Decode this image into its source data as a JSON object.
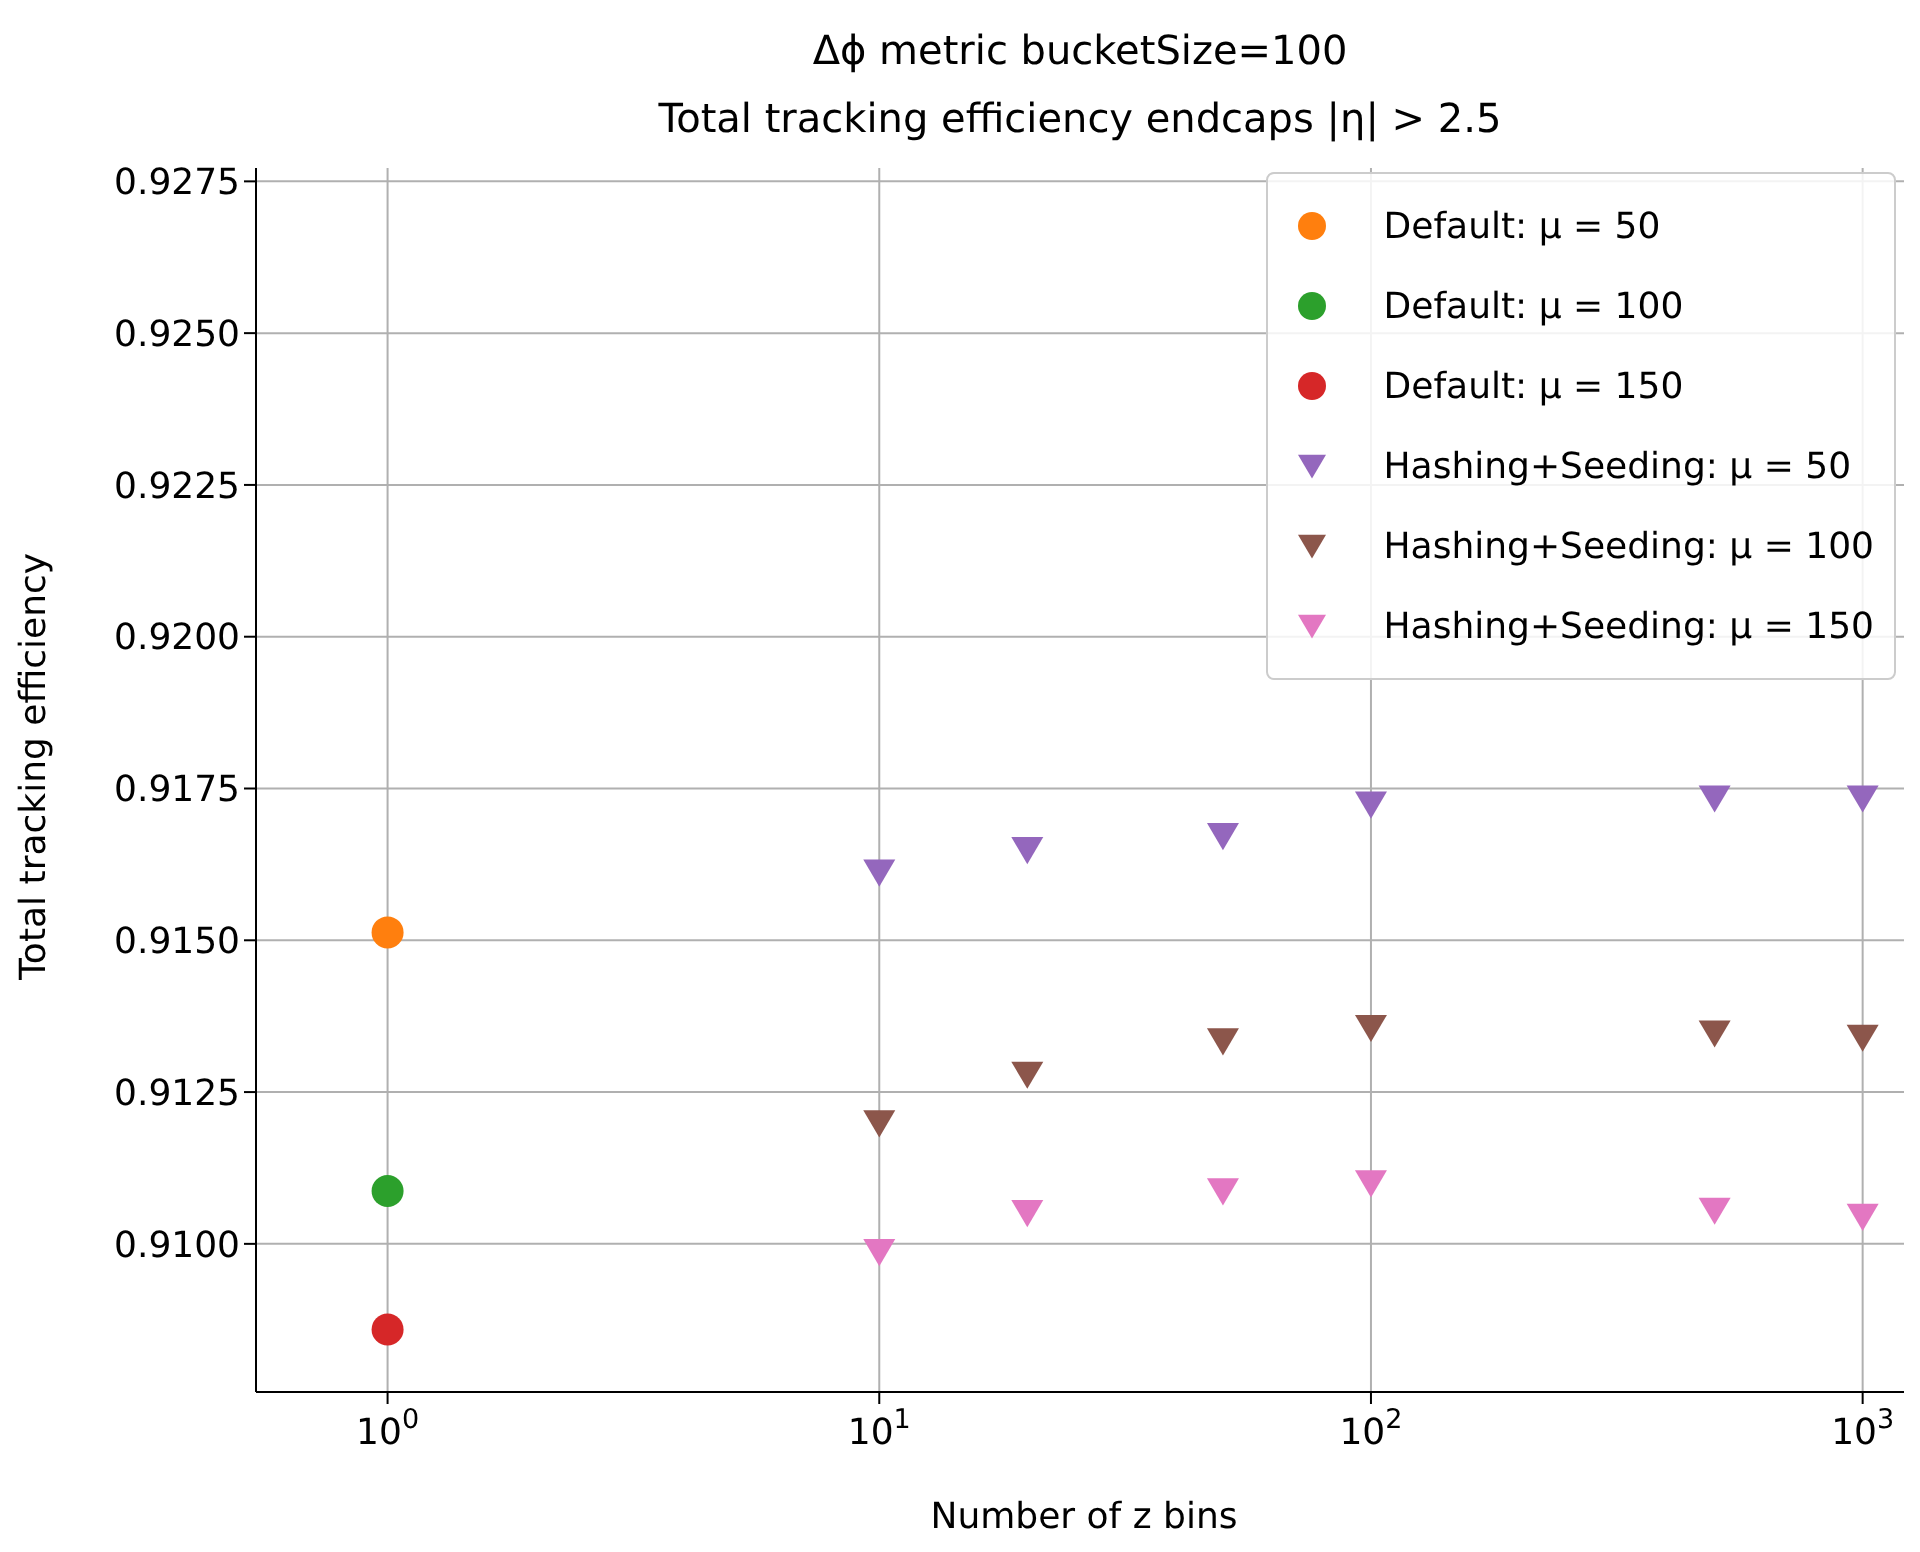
{
  "chart_data": {
    "type": "scatter",
    "title": "Δϕ metric bucketSize=100",
    "subtitle": "Total tracking efficiency endcaps |η| > 2.5",
    "xlabel": "Number of z bins",
    "ylabel": "Total tracking efficiency",
    "log": "x",
    "grid": true,
    "legend": "top right",
    "xlim": [
      0.54,
      1260
    ],
    "xticks": [
      {
        "value": 1,
        "label": "10$^{0}$"
      },
      {
        "value": 10,
        "label": "10$^{1}$"
      },
      {
        "value": 100,
        "label": "10$^{2}$"
      },
      {
        "value": 1000,
        "label": "10$^{3}$"
      }
    ],
    "ylim": [
      0.90756,
      0.92772
    ],
    "yticks": [
      {
        "value": 0.91,
        "label": "0.9100"
      },
      {
        "value": 0.9125,
        "label": "0.9125"
      },
      {
        "value": 0.915,
        "label": "0.9150"
      },
      {
        "value": 0.9175,
        "label": "0.9175"
      },
      {
        "value": 0.92,
        "label": "0.9200"
      },
      {
        "value": 0.9225,
        "label": "0.9225"
      },
      {
        "value": 0.925,
        "label": "0.9250"
      },
      {
        "value": 0.9275,
        "label": "0.9275"
      }
    ],
    "series": [
      {
        "name": "Default: μ = 50",
        "color": "#ff7f0e",
        "marker": "circle",
        "x": [
          1
        ],
        "values": [
          0.91513
        ]
      },
      {
        "name": "Default: μ = 100",
        "color": "#2ca02c",
        "marker": "circle",
        "x": [
          1
        ],
        "values": [
          0.91087
        ]
      },
      {
        "name": "Default: μ = 150",
        "color": "#d62728",
        "marker": "circle",
        "x": [
          1
        ],
        "values": [
          0.90859
        ]
      },
      {
        "name": "Hashing+Seeding: μ = 50",
        "color": "#9467bd",
        "marker": "triangle",
        "x": [
          10,
          20,
          50,
          100,
          500,
          1000
        ],
        "values": [
          0.91612,
          0.91649,
          0.91672,
          0.91724,
          0.91734,
          0.91734
        ]
      },
      {
        "name": "Hashing+Seeding: μ = 100",
        "color": "#8c564b",
        "marker": "triangle",
        "x": [
          10,
          20,
          50,
          100,
          500,
          1000
        ],
        "values": [
          0.91199,
          0.91279,
          0.91334,
          0.91356,
          0.91347,
          0.9134
        ]
      },
      {
        "name": "Hashing+Seeding: μ = 150",
        "color": "#e377c2",
        "marker": "triangle",
        "x": [
          10,
          20,
          50,
          100,
          500,
          1000
        ],
        "values": [
          0.90987,
          0.91051,
          0.91087,
          0.911,
          0.91055,
          0.91045
        ]
      }
    ]
  }
}
